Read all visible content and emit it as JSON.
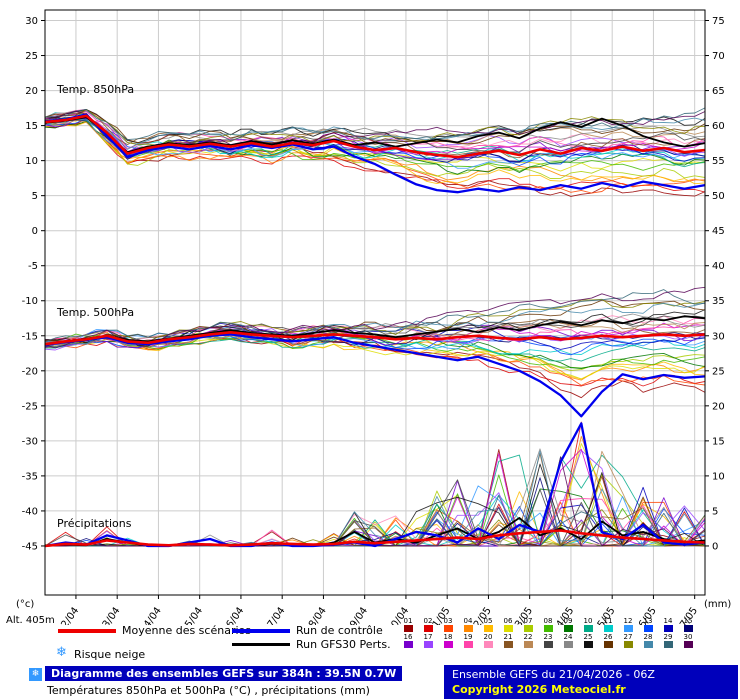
{
  "icons": {
    "snow": "❄"
  },
  "colors": {
    "mean": "#ee0000",
    "control": "#0000ee",
    "gfs": "#000000",
    "grid": "#cccccc",
    "axis": "#000000",
    "snow_icon": "#3399ff",
    "footer_bg": "#0000bb",
    "copyright_text": "#ffff00",
    "members": [
      "#990000",
      "#dd0000",
      "#ff4400",
      "#ff8800",
      "#ffbb00",
      "#dddd00",
      "#aacc00",
      "#44bb00",
      "#007700",
      "#00aa88",
      "#00cccc",
      "#3399ff",
      "#0044ff",
      "#0000bb",
      "#000077",
      "#7700cc",
      "#9944ff",
      "#cc00cc",
      "#ff44aa",
      "#ff88bb",
      "#885522",
      "#bb8855",
      "#444444",
      "#888888",
      "#111111",
      "#663300",
      "#888800",
      "#4488aa",
      "#336677",
      "#550055"
    ]
  },
  "axes": {
    "left_unit": "(°c)",
    "right_unit": "(mm)",
    "alt_label": "Alt. 405m",
    "left_ticks": [
      30,
      25,
      20,
      15,
      10,
      5,
      0,
      -5,
      -10,
      -15,
      -20,
      -25,
      -30,
      -35,
      -40,
      -45
    ],
    "right_ticks": [
      75,
      70,
      65,
      60,
      55,
      50,
      45,
      40,
      35,
      30,
      25,
      20,
      15,
      10,
      5,
      0
    ]
  },
  "legend": {
    "mean_label": "Moyenne des scénarios",
    "control_label": "Run de contrôle",
    "gfs_label": "Run GFS",
    "perts_label": "30 Perts.",
    "snow_label": "Risque neige",
    "pert_rows": [
      [
        "01",
        "02",
        "03",
        "04",
        "05",
        "06",
        "07",
        "08",
        "09",
        "10",
        "11",
        "12",
        "13",
        "14",
        "15"
      ],
      [
        "16",
        "17",
        "18",
        "19",
        "20",
        "21",
        "22",
        "23",
        "24",
        "25",
        "26",
        "27",
        "28",
        "29",
        "30"
      ]
    ]
  },
  "footer": {
    "title": "Diagramme des ensembles GEFS sur 384h : 39.5N 0.7W",
    "subtitle": "Températures 850hPa et 500hPa (°C) , précipitations (mm)",
    "run_info": "Ensemble GEFS du 21/04/2026 - 06Z",
    "copyright": "Copyright 2026 Meteociel.fr"
  },
  "chart_data": {
    "type": "line",
    "title": "Diagramme des ensembles GEFS sur 384h : 39.5N 0.7W",
    "subtitle": "Températures 850hPa et 500hPa (°C) , précipitations (mm)",
    "run": "Ensemble GEFS du 21/04/2026 - 06Z",
    "members": 30,
    "grid": true,
    "ylim_left_celsius": [
      -45,
      30
    ],
    "ylim_right_mm": [
      0,
      75
    ],
    "x_hours": [
      0,
      12,
      24,
      36,
      48,
      60,
      72,
      84,
      96,
      108,
      120,
      132,
      144,
      156,
      168,
      180,
      192,
      204,
      216,
      228,
      240,
      252,
      264,
      276,
      288,
      300,
      312,
      324,
      336,
      348,
      360,
      372,
      384
    ],
    "x_tick_labels": [
      "22/04",
      "23/04",
      "24/04",
      "25/04",
      "26/04",
      "27/04",
      "28/04",
      "29/04",
      "30/04",
      "01/05",
      "02/05",
      "03/05",
      "04/05",
      "05/05",
      "06/05",
      "07/05"
    ],
    "panels": [
      {
        "id": "t850",
        "label": "Temp. 850hPa",
        "unit": "°C",
        "series": [
          {
            "name": "Moyenne des scénarios",
            "values": [
              15.5,
              15.8,
              16.4,
              14.0,
              11.0,
              11.8,
              12.3,
              12.0,
              12.4,
              12.0,
              12.5,
              12.0,
              12.5,
              12.2,
              12.8,
              12.0,
              11.5,
              11.8,
              11.2,
              10.8,
              10.5,
              11.0,
              11.4,
              10.8,
              11.6,
              11.0,
              11.8,
              11.4,
              12.0,
              11.4,
              11.8,
              11.2,
              11.5
            ]
          },
          {
            "name": "Run de contrôle",
            "values": [
              15.6,
              15.9,
              16.6,
              13.5,
              10.5,
              11.5,
              12.0,
              11.6,
              12.1,
              11.6,
              12.2,
              11.8,
              12.3,
              11.6,
              12.0,
              10.6,
              9.5,
              8.0,
              6.6,
              5.8,
              5.5,
              6.0,
              5.6,
              6.2,
              5.8,
              6.5,
              6.0,
              6.8,
              6.2,
              7.0,
              6.5,
              6.0,
              6.5
            ]
          },
          {
            "name": "Run GFS",
            "values": [
              15.4,
              15.7,
              16.2,
              13.8,
              11.2,
              12.0,
              12.5,
              12.2,
              12.6,
              12.2,
              12.8,
              12.3,
              12.9,
              12.4,
              13.0,
              12.2,
              12.6,
              12.0,
              12.5,
              13.0,
              12.6,
              13.5,
              14.0,
              13.2,
              14.6,
              15.5,
              14.8,
              16.0,
              15.0,
              13.5,
              12.6,
              12.0,
              12.5
            ]
          }
        ],
        "envelope_min": [
          14.8,
          15.0,
          15.5,
          12.4,
          9.5,
          10.0,
          10.5,
          10.0,
          10.2,
          9.8,
          10.0,
          9.5,
          10.0,
          9.5,
          9.8,
          9.0,
          8.5,
          7.5,
          6.5,
          5.6,
          5.0,
          5.2,
          5.0,
          5.2,
          5.0,
          5.4,
          5.2,
          5.6,
          5.4,
          5.8,
          5.4,
          5.0,
          4.5
        ],
        "envelope_max": [
          16.2,
          16.8,
          17.3,
          15.5,
          13.0,
          13.5,
          14.0,
          13.8,
          14.2,
          14.0,
          14.5,
          14.2,
          14.8,
          14.5,
          15.2,
          14.8,
          15.0,
          14.8,
          15.2,
          15.5,
          15.8,
          16.0,
          16.5,
          16.2,
          16.8,
          17.0,
          16.5,
          17.2,
          17.0,
          17.5,
          17.0,
          17.4,
          18.0
        ]
      },
      {
        "id": "t500",
        "label": "Temp. 500hPa",
        "unit": "°C",
        "series": [
          {
            "name": "Moyenne des scénarios",
            "values": [
              -16.2,
              -15.8,
              -15.5,
              -15.0,
              -15.8,
              -16.0,
              -15.5,
              -15.2,
              -14.8,
              -14.5,
              -14.8,
              -15.0,
              -15.2,
              -15.0,
              -14.8,
              -15.0,
              -15.2,
              -15.5,
              -15.3,
              -15.5,
              -15.2,
              -15.0,
              -15.3,
              -15.5,
              -15.2,
              -15.5,
              -15.3,
              -15.0,
              -15.2,
              -15.0,
              -14.8,
              -15.0,
              -14.8
            ]
          },
          {
            "name": "Run de contrôle",
            "values": [
              -16.3,
              -15.9,
              -15.6,
              -15.2,
              -16.0,
              -16.2,
              -15.8,
              -15.5,
              -15.0,
              -14.8,
              -15.2,
              -15.5,
              -15.8,
              -15.5,
              -15.2,
              -16.0,
              -16.5,
              -17.0,
              -17.5,
              -18.0,
              -18.5,
              -18.0,
              -19.0,
              -20.0,
              -21.5,
              -23.5,
              -26.5,
              -23.0,
              -20.5,
              -21.2,
              -20.6,
              -21.0,
              -20.8
            ]
          },
          {
            "name": "Run GFS",
            "values": [
              -16.2,
              -15.8,
              -15.4,
              -15.0,
              -15.6,
              -15.8,
              -15.4,
              -15.0,
              -14.6,
              -14.2,
              -14.6,
              -14.8,
              -15.0,
              -14.6,
              -14.2,
              -14.6,
              -14.8,
              -15.2,
              -14.8,
              -14.4,
              -14.0,
              -14.5,
              -13.8,
              -14.2,
              -13.5,
              -13.0,
              -13.5,
              -12.8,
              -13.2,
              -12.5,
              -12.8,
              -12.2,
              -12.5
            ]
          }
        ],
        "envelope_min": [
          -17.0,
          -16.5,
          -16.2,
          -15.8,
          -16.6,
          -17.0,
          -16.5,
          -16.2,
          -15.8,
          -15.5,
          -16.0,
          -16.5,
          -16.8,
          -16.5,
          -16.2,
          -17.0,
          -17.5,
          -18.2,
          -18.6,
          -19.0,
          -19.5,
          -20.0,
          -21.0,
          -22.0,
          -23.0,
          -24.5,
          -26.5,
          -25.0,
          -24.0,
          -25.0,
          -24.5,
          -25.0,
          -25.5
        ],
        "envelope_max": [
          -15.5,
          -15.0,
          -14.8,
          -14.2,
          -15.0,
          -15.2,
          -14.8,
          -14.2,
          -13.8,
          -13.2,
          -13.5,
          -13.8,
          -14.0,
          -13.5,
          -13.0,
          -13.2,
          -13.0,
          -12.8,
          -12.4,
          -12.0,
          -11.5,
          -11.0,
          -10.5,
          -10.0,
          -9.5,
          -9.0,
          -8.5,
          -8.0,
          -8.4,
          -8.0,
          -7.6,
          -7.8,
          -7.4
        ]
      },
      {
        "id": "precip",
        "label": "Précipitations",
        "unit": "mm",
        "series": [
          {
            "name": "Moyenne des scénarios",
            "values": [
              0,
              0.3,
              0.2,
              0.8,
              0.5,
              0.2,
              0.1,
              0.3,
              0.2,
              0.1,
              0.2,
              0.4,
              0.3,
              0.2,
              0.3,
              0.6,
              0.4,
              0.6,
              0.8,
              1.0,
              1.2,
              1.0,
              1.5,
              1.8,
              2.0,
              2.2,
              1.8,
              1.5,
              1.2,
              1.0,
              0.8,
              0.6,
              0.5
            ]
          },
          {
            "name": "Run de contrôle",
            "values": [
              0,
              0.5,
              0.2,
              1.5,
              0.8,
              0,
              0,
              0.5,
              1.0,
              0,
              0,
              0.5,
              0,
              0,
              0.2,
              0.5,
              0,
              1.0,
              2.0,
              1.5,
              0.5,
              2.5,
              1.0,
              3.0,
              2.0,
              12.0,
              17.5,
              2.0,
              1.0,
              3.0,
              0.5,
              0.2,
              0.5
            ]
          },
          {
            "name": "Run GFS",
            "values": [
              0,
              0.2,
              0.1,
              1.0,
              0.5,
              0,
              0,
              0.3,
              0.2,
              0,
              0,
              0.3,
              0.2,
              0,
              0.5,
              2.0,
              0.5,
              1.0,
              0.5,
              1.5,
              2.5,
              1.0,
              2.0,
              4.0,
              1.5,
              2.5,
              1.0,
              3.5,
              1.5,
              2.0,
              1.0,
              0.5,
              0.8
            ]
          }
        ],
        "envelope_min": [
          0,
          0,
          0,
          0,
          0,
          0,
          0,
          0,
          0,
          0,
          0,
          0,
          0,
          0,
          0,
          0,
          0,
          0,
          0,
          0,
          0,
          0,
          0,
          0,
          0,
          0,
          0,
          0,
          0,
          0,
          0,
          0,
          0
        ],
        "envelope_max": [
          0.5,
          2.0,
          1.5,
          3.0,
          2.0,
          1.0,
          0.5,
          1.5,
          2.0,
          1.0,
          1.5,
          2.5,
          2.0,
          1.5,
          3.0,
          7.0,
          4.0,
          5.0,
          6.0,
          8.0,
          10.0,
          9.0,
          14.0,
          15.0,
          17.0,
          18.0,
          18.0,
          14.0,
          10.0,
          9.0,
          8.0,
          6.0,
          5.0
        ]
      }
    ]
  }
}
